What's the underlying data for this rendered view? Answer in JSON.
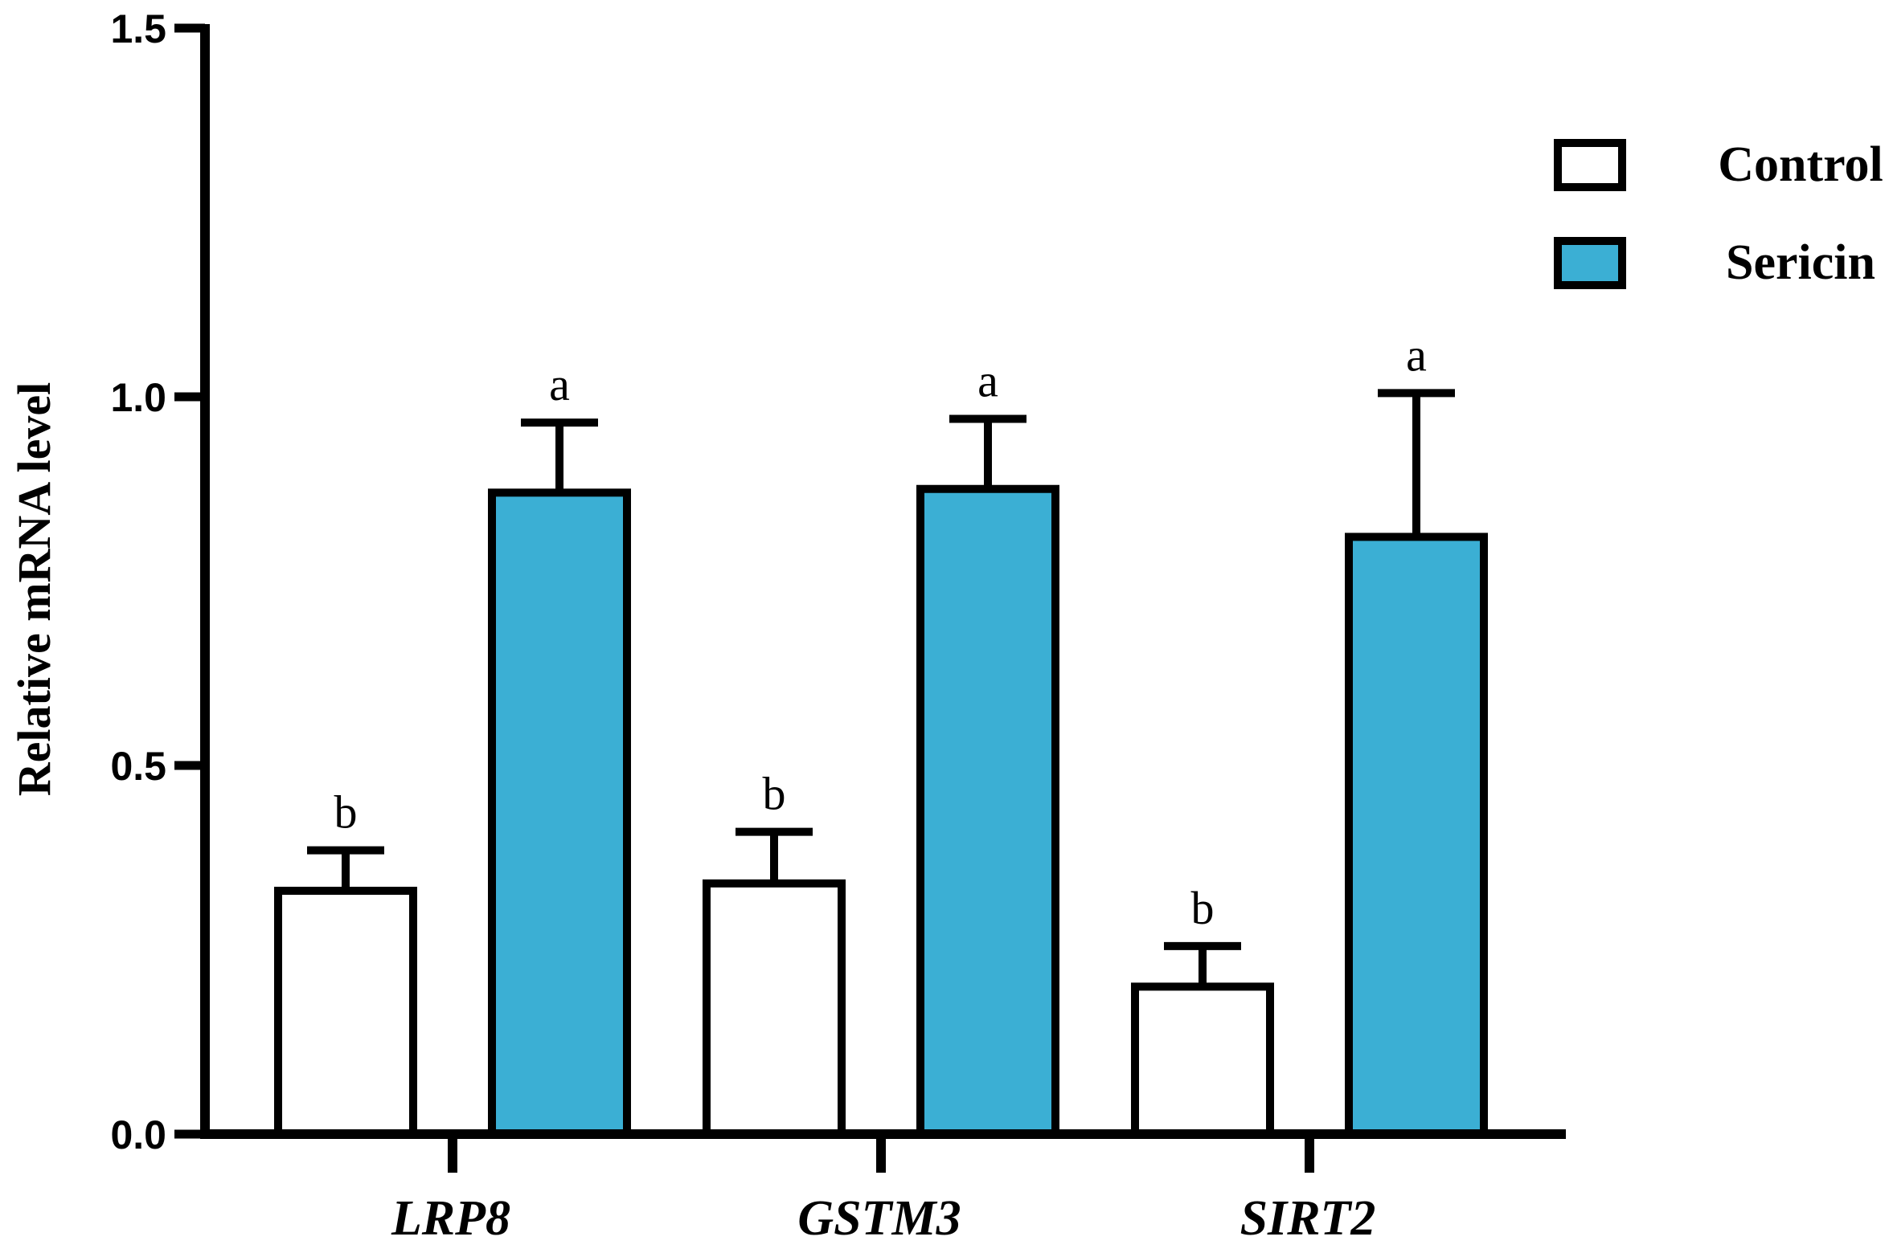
{
  "chart_data": {
    "type": "bar",
    "ylabel": "Relative mRNA level",
    "xlabel": "",
    "ylim": [
      0,
      1.5
    ],
    "yticks": [
      "0.0",
      "0.5",
      "1.0",
      "1.5"
    ],
    "categories": [
      "LRP8",
      "GSTM3",
      "SIRT2"
    ],
    "series": [
      {
        "name": "Control",
        "color": "#ffffff",
        "values": [
          0.33,
          0.34,
          0.2
        ],
        "errors": [
          0.055,
          0.07,
          0.055
        ],
        "labels": [
          "b",
          "b",
          "b"
        ]
      },
      {
        "name": "Sericin",
        "color": "#3bafd4",
        "values": [
          0.87,
          0.875,
          0.81
        ],
        "errors": [
          0.095,
          0.095,
          0.195
        ],
        "labels": [
          "a",
          "a",
          "a"
        ]
      }
    ],
    "legend": "top-right",
    "grid": false
  }
}
